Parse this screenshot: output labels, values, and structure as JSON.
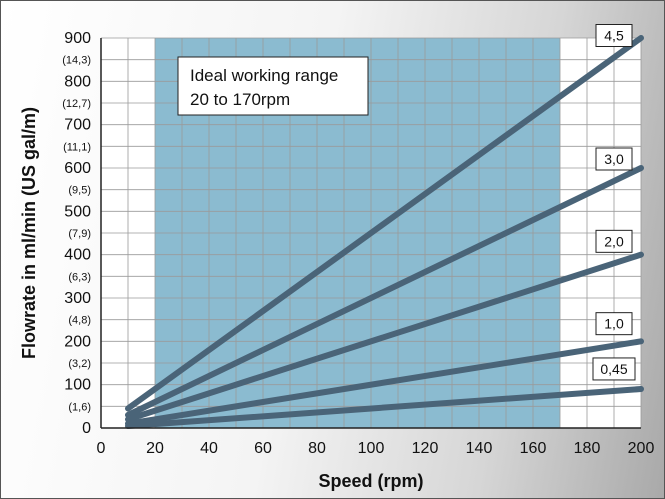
{
  "chart_data": {
    "type": "line",
    "xlabel": "Speed (rpm)",
    "ylabel": "Flowrate in ml/min (US gal/m)",
    "xlim": [
      0,
      200
    ],
    "ylim": [
      0,
      900
    ],
    "x_ticks": [
      "0",
      "20",
      "40",
      "60",
      "80",
      "100",
      "120",
      "140",
      "160",
      "180",
      "200"
    ],
    "y_ticks": [
      {
        "value": 900,
        "label": "900",
        "sub": "(14,3)"
      },
      {
        "value": 800,
        "label": "800",
        "sub": "(12,7)"
      },
      {
        "value": 700,
        "label": "700",
        "sub": "(11,1)"
      },
      {
        "value": 600,
        "label": "600",
        "sub": "(9,5)"
      },
      {
        "value": 500,
        "label": "500",
        "sub": "(7,9)"
      },
      {
        "value": 400,
        "label": "400",
        "sub": "(6,3)"
      },
      {
        "value": 300,
        "label": "300",
        "sub": "(4,8)"
      },
      {
        "value": 200,
        "label": "200",
        "sub": "(3,2)"
      },
      {
        "value": 100,
        "label": "100",
        "sub": "(1,6)"
      },
      {
        "value": 0,
        "label": "0",
        "sub": ""
      }
    ],
    "grid": true,
    "highlight_range": {
      "x": [
        20,
        170
      ],
      "color": "#8bbbd0"
    },
    "annotation": {
      "line1": "Ideal working range",
      "line2": "20 to 170rpm"
    },
    "series": [
      {
        "name": "4,5",
        "x": [
          10,
          200
        ],
        "y": [
          45,
          900
        ]
      },
      {
        "name": "3,0",
        "x": [
          10,
          200
        ],
        "y": [
          30,
          600
        ]
      },
      {
        "name": "2,0",
        "x": [
          10,
          200
        ],
        "y": [
          20,
          400
        ]
      },
      {
        "name": "1,0",
        "x": [
          10,
          200
        ],
        "y": [
          10,
          200
        ]
      },
      {
        "name": "0,45",
        "x": [
          10,
          200
        ],
        "y": [
          4.5,
          90
        ]
      }
    ],
    "line_color": "#4a6478"
  }
}
